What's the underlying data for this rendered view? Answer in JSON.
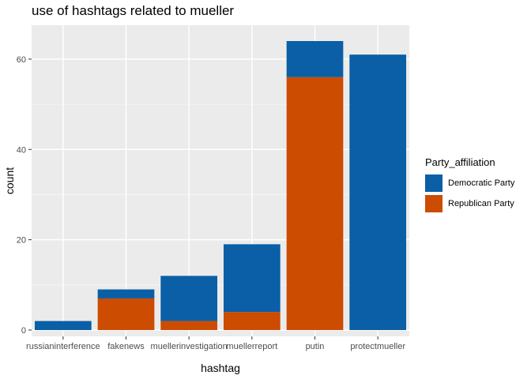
{
  "chart_data": {
    "type": "bar",
    "stacked": true,
    "title": "use of hashtags related to mueller",
    "xlabel": "hashtag",
    "ylabel": "count",
    "categories": [
      "russianinterference",
      "fakenews",
      "muellerinvestigation",
      "muellerreport",
      "putin",
      "protectmueller"
    ],
    "series": [
      {
        "name": "Republican Party",
        "values": [
          0,
          7,
          2,
          4,
          56,
          0
        ],
        "color": "#cc4c02"
      },
      {
        "name": "Democratic Party",
        "values": [
          2,
          2,
          10,
          15,
          8,
          61
        ],
        "color": "#0a5fa6"
      }
    ],
    "ylim": [
      0,
      67
    ],
    "yticks": [
      0,
      20,
      40,
      60
    ],
    "grid": true,
    "legend": {
      "title": "Party_affiliation",
      "placement": "right",
      "entries": [
        "Democratic Party",
        "Republican Party"
      ]
    }
  }
}
